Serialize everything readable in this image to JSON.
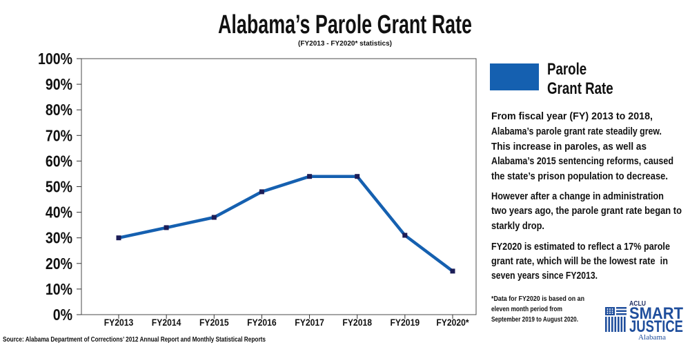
{
  "chart_data": {
    "type": "line",
    "title": "Alabama’s Parole Grant Rate",
    "subtitle": "(FY2013 - FY2020* statistics)",
    "categories": [
      "FY2013",
      "FY2014",
      "FY2015",
      "FY2016",
      "FY2017",
      "FY2018",
      "FY2019",
      "FY2020*"
    ],
    "series": [
      {
        "name": "Parole Grant Rate",
        "values": [
          30,
          34,
          38,
          48,
          54,
          54,
          31,
          17
        ],
        "color": "#1560b0",
        "marker_color": "#1c1d57"
      }
    ],
    "ylim": [
      0,
      100
    ],
    "yticks": [
      0,
      10,
      20,
      30,
      40,
      50,
      60,
      70,
      80,
      90,
      100
    ],
    "ytick_labels": [
      "0%",
      "10%",
      "20%",
      "30%",
      "40%",
      "50%",
      "60%",
      "70%",
      "80%",
      "90%",
      "100%"
    ],
    "grid": false,
    "legend": {
      "position": "right"
    }
  },
  "notes": {
    "paragraphs": [
      [
        "From fiscal year (FY) 2013 to 2018,",
        "Alabama’s parole grant rate steadily grew.",
        "This increase in paroles, as well as",
        "Alabama’s 2015 sentencing reforms, caused",
        "the state’s prison population to decrease."
      ],
      [
        "However after a change in administration",
        "two years ago, the parole grant rate began to",
        "starkly drop."
      ],
      [
        "FY2020 is estimated to reflect a 17% parole",
        "grant rate, which will be the lowest rate  in",
        "seven years since FY2013."
      ]
    ],
    "footnote": [
      "*Data for FY2020 is based on an",
      "eleven month period from",
      "September 2019 to August 2020."
    ]
  },
  "source": "Source: Alabama Department of Corrections’ 2012 Annual Report and Monthly Statistical Reports",
  "logo": {
    "org": "ACLU",
    "line1": "SMART",
    "line2": "JUSTICE",
    "state": "Alabama",
    "icon": "flag-bars-icon"
  },
  "colors": {
    "text": "#111111",
    "logo_blue": "#1f4e9c",
    "logo_navy": "#1b2a5e"
  }
}
